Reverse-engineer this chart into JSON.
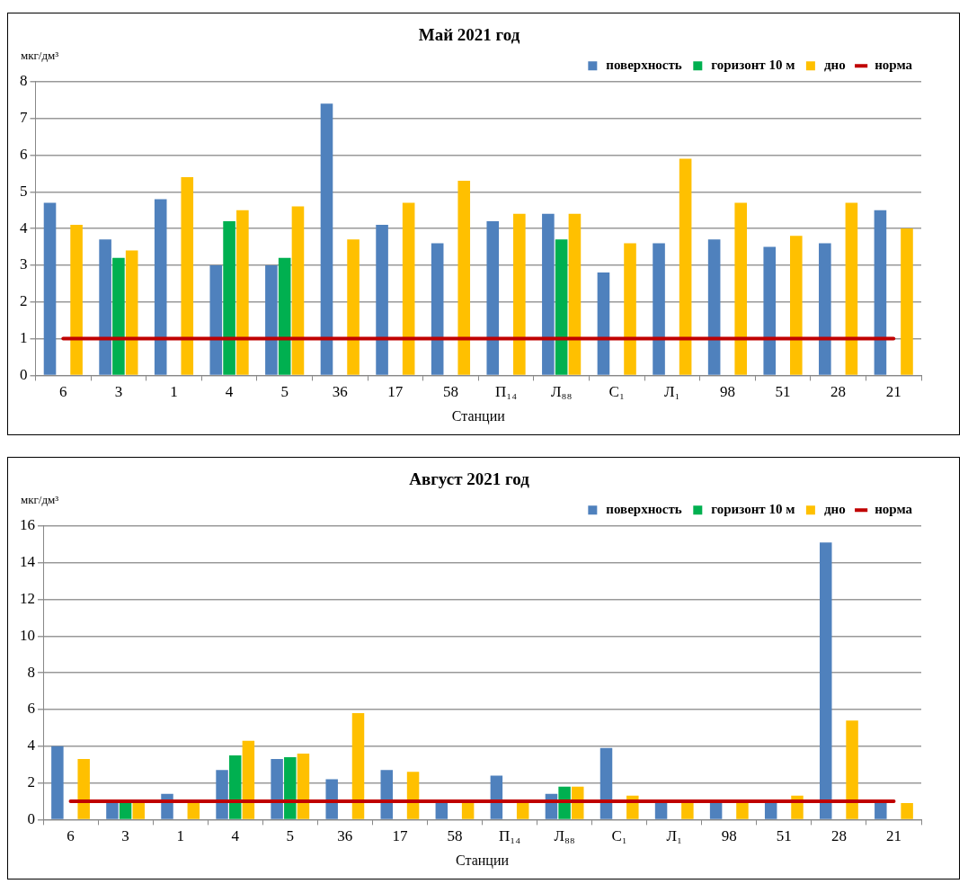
{
  "chart_data": [
    {
      "type": "bar",
      "title": "Май 2021 год",
      "xlabel": "Станции",
      "ylabel": "мкг/дм³",
      "categories": [
        "6",
        "3",
        "1",
        "4",
        "5",
        "36",
        "17",
        "58",
        "П₁₄",
        "Л₈₈",
        "С₁",
        "Л₁",
        "98",
        "51",
        "28",
        "21"
      ],
      "ylim": [
        0,
        8
      ],
      "yticks": [
        0,
        1,
        2,
        3,
        4,
        5,
        6,
        7,
        8
      ],
      "grid": "y",
      "legend": "top right",
      "marker": "none",
      "series": [
        {
          "name": "поверхность",
          "color": "#4f81bd",
          "values": [
            4.7,
            3.7,
            4.8,
            3.0,
            3.0,
            7.4,
            4.1,
            3.6,
            4.2,
            4.4,
            2.8,
            3.6,
            3.7,
            3.5,
            3.6,
            4.5
          ]
        },
        {
          "name": "горизонт 10 м",
          "color": "#00b050",
          "values": [
            null,
            3.2,
            null,
            4.2,
            3.2,
            null,
            null,
            null,
            null,
            3.7,
            null,
            null,
            null,
            null,
            null,
            null
          ]
        },
        {
          "name": "дно",
          "color": "#ffc000",
          "values": [
            4.1,
            3.4,
            5.4,
            4.5,
            4.6,
            3.7,
            4.7,
            5.3,
            4.4,
            4.4,
            3.6,
            5.9,
            4.7,
            3.8,
            4.7,
            4.0
          ]
        },
        {
          "name": "норма",
          "type": "line",
          "color": "#c00000",
          "values": [
            1,
            1,
            1,
            1,
            1,
            1,
            1,
            1,
            1,
            1,
            1,
            1,
            1,
            1,
            1,
            1
          ]
        }
      ]
    },
    {
      "type": "bar",
      "title": "Август 2021 год",
      "xlabel": "Станции",
      "ylabel": "мкг/дм³",
      "categories": [
        "6",
        "3",
        "1",
        "4",
        "5",
        "36",
        "17",
        "58",
        "П₁₄",
        "Л₈₈",
        "С₁",
        "Л₁",
        "98",
        "51",
        "28",
        "21"
      ],
      "ylim": [
        0,
        16
      ],
      "yticks": [
        0,
        2,
        4,
        6,
        8,
        10,
        12,
        14,
        16
      ],
      "grid": "y",
      "legend": "top right",
      "marker": "none",
      "series": [
        {
          "name": "поверхность",
          "color": "#4f81bd",
          "values": [
            4.0,
            1.0,
            1.4,
            2.7,
            3.3,
            2.2,
            2.7,
            1.0,
            2.4,
            1.4,
            3.9,
            1.0,
            1.0,
            1.0,
            15.1,
            1.0
          ]
        },
        {
          "name": "горизонт 10 м",
          "color": "#00b050",
          "values": [
            null,
            1.0,
            null,
            3.5,
            3.4,
            null,
            null,
            null,
            null,
            1.8,
            null,
            null,
            null,
            null,
            null,
            null
          ]
        },
        {
          "name": "дно",
          "color": "#ffc000",
          "values": [
            3.3,
            1.0,
            1.0,
            4.3,
            3.6,
            5.8,
            2.6,
            1.0,
            1.0,
            1.8,
            1.3,
            1.0,
            1.0,
            1.3,
            5.4,
            0.9
          ]
        },
        {
          "name": "норма",
          "type": "line",
          "color": "#c00000",
          "values": [
            1,
            1,
            1,
            1,
            1,
            1,
            1,
            1,
            1,
            1,
            1,
            1,
            1,
            1,
            1,
            1
          ]
        }
      ]
    }
  ]
}
